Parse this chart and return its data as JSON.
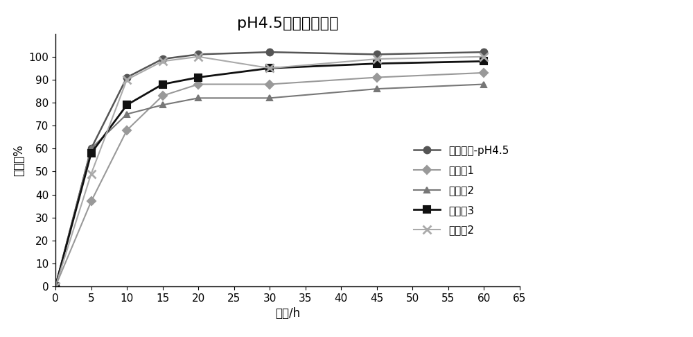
{
  "title": "pH4.5介质溢出曲线",
  "xlabel": "时间/h",
  "ylabel": "释放度%",
  "x_ticks": [
    0,
    5,
    10,
    15,
    20,
    25,
    30,
    35,
    40,
    45,
    50,
    55,
    60,
    65
  ],
  "xlim": [
    0,
    65
  ],
  "ylim": [
    0,
    110
  ],
  "y_ticks": [
    0,
    10,
    20,
    30,
    40,
    50,
    60,
    70,
    80,
    90,
    100
  ],
  "series": [
    {
      "label": "参比制剂-pH4.5",
      "x": [
        0,
        5,
        10,
        15,
        20,
        30,
        45,
        60
      ],
      "y": [
        0,
        60,
        91,
        99,
        101,
        102,
        101,
        102
      ],
      "color": "#555555",
      "marker": "o",
      "linewidth": 1.8,
      "markersize": 7
    },
    {
      "label": "对比例1",
      "x": [
        0,
        5,
        10,
        15,
        20,
        30,
        45,
        60
      ],
      "y": [
        0,
        37,
        68,
        83,
        88,
        88,
        91,
        93
      ],
      "color": "#999999",
      "marker": "D",
      "linewidth": 1.5,
      "markersize": 6
    },
    {
      "label": "对比例2",
      "x": [
        0,
        5,
        10,
        15,
        20,
        30,
        45,
        60
      ],
      "y": [
        0,
        60,
        75,
        79,
        82,
        82,
        86,
        88
      ],
      "color": "#777777",
      "marker": "^",
      "linewidth": 1.5,
      "markersize": 6
    },
    {
      "label": "对比例3",
      "x": [
        0,
        5,
        10,
        15,
        20,
        30,
        45,
        60
      ],
      "y": [
        0,
        58,
        79,
        88,
        91,
        95,
        97,
        98
      ],
      "color": "#111111",
      "marker": "s",
      "linewidth": 2.0,
      "markersize": 7
    },
    {
      "label": "实施例2",
      "x": [
        0,
        5,
        10,
        15,
        20,
        30,
        45,
        60
      ],
      "y": [
        0,
        49,
        90,
        98,
        100,
        95,
        99,
        100
      ],
      "color": "#aaaaaa",
      "marker": "x",
      "linewidth": 1.5,
      "markersize": 8,
      "markeredgewidth": 2.0
    }
  ],
  "title_fontsize": 16,
  "label_fontsize": 12,
  "tick_fontsize": 11,
  "legend_fontsize": 11
}
